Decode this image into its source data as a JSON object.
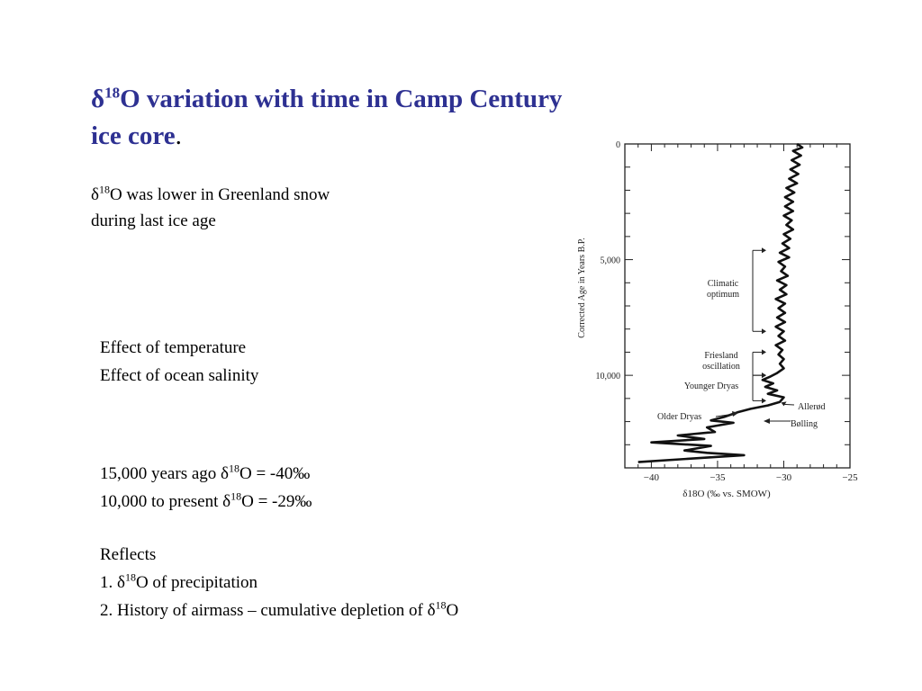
{
  "title": {
    "delta": "δ",
    "sup": "18",
    "line1": "O variation with time in Camp Century",
    "line2": "ice core",
    "period": "."
  },
  "subtitle": {
    "delta": "δ",
    "sup": "18",
    "line1": "O was lower in Greenland snow",
    "line2": "during last ice age"
  },
  "effects": [
    "Effect of temperature",
    "Effect of ocean salinity"
  ],
  "values": {
    "row1": {
      "prefix": "15,000 years ago  ",
      "delta": "δ",
      "sup": "18",
      "suffix": "O = -40‰"
    },
    "row2": {
      "prefix": "10,000 to present  ",
      "delta": "δ",
      "sup": "18",
      "suffix": "O = -29‰"
    }
  },
  "reflects": {
    "heading": "Reflects",
    "item1": {
      "prefix": "1. ",
      "delta": "δ",
      "sup": "18",
      "suffix": "O of precipitation"
    },
    "item2": {
      "prefix": "2. History of airmass – cumulative depletion of ",
      "delta": "δ",
      "sup": "18",
      "suffix": "O"
    }
  },
  "colors": {
    "title": "#2e3192",
    "text": "#000000",
    "background": "#ffffff"
  },
  "chart_data": {
    "type": "line",
    "xlabel": "δ18O (‰ vs. SMOW)",
    "ylabel": "Corrected Age in Years B.P.",
    "xlim": [
      -42,
      -25
    ],
    "ylim": [
      0,
      14000
    ],
    "y_inverted": true,
    "x_ticks": [
      -40,
      -35,
      -30,
      -25
    ],
    "x_tick_labels": [
      "−40",
      "−35",
      "−30",
      "−25"
    ],
    "y_ticks": [
      0,
      5000,
      10000
    ],
    "y_tick_labels": [
      "0",
      "5,000",
      "10,000"
    ],
    "series": [
      {
        "points": [
          [
            -29.0,
            0
          ],
          [
            -28.6,
            150
          ],
          [
            -29.3,
            300
          ],
          [
            -28.7,
            500
          ],
          [
            -29.4,
            700
          ],
          [
            -28.8,
            900
          ],
          [
            -29.5,
            1100
          ],
          [
            -28.9,
            1300
          ],
          [
            -29.6,
            1500
          ],
          [
            -29.0,
            1700
          ],
          [
            -29.8,
            1900
          ],
          [
            -29.2,
            2100
          ],
          [
            -29.9,
            2300
          ],
          [
            -29.3,
            2500
          ],
          [
            -29.9,
            2700
          ],
          [
            -29.3,
            2900
          ],
          [
            -30.0,
            3100
          ],
          [
            -29.4,
            3300
          ],
          [
            -29.8,
            3500
          ],
          [
            -29.3,
            3700
          ],
          [
            -30.0,
            3900
          ],
          [
            -29.5,
            4100
          ],
          [
            -30.1,
            4300
          ],
          [
            -29.6,
            4500
          ],
          [
            -30.3,
            4700
          ],
          [
            -29.6,
            4900
          ],
          [
            -30.4,
            5100
          ],
          [
            -29.9,
            5300
          ],
          [
            -30.2,
            5500
          ],
          [
            -29.7,
            5700
          ],
          [
            -30.5,
            5900
          ],
          [
            -29.8,
            6100
          ],
          [
            -30.3,
            6300
          ],
          [
            -29.8,
            6500
          ],
          [
            -30.6,
            6700
          ],
          [
            -29.9,
            6900
          ],
          [
            -30.4,
            7100
          ],
          [
            -29.9,
            7300
          ],
          [
            -30.5,
            7500
          ],
          [
            -29.9,
            7700
          ],
          [
            -30.6,
            7900
          ],
          [
            -30.0,
            8100
          ],
          [
            -30.4,
            8300
          ],
          [
            -29.9,
            8500
          ],
          [
            -30.6,
            8700
          ],
          [
            -30.1,
            8900
          ],
          [
            -30.4,
            9100
          ],
          [
            -30.0,
            9300
          ],
          [
            -30.3,
            9500
          ],
          [
            -30.0,
            9700
          ],
          [
            -30.5,
            9900
          ],
          [
            -31.0,
            10050
          ],
          [
            -31.6,
            10200
          ],
          [
            -30.8,
            10350
          ],
          [
            -31.4,
            10500
          ],
          [
            -30.5,
            10650
          ],
          [
            -31.2,
            10800
          ],
          [
            -30.0,
            10950
          ],
          [
            -30.3,
            11150
          ],
          [
            -31.2,
            11300
          ],
          [
            -32.5,
            11450
          ],
          [
            -33.5,
            11600
          ],
          [
            -34.5,
            11800
          ],
          [
            -35.5,
            11950
          ],
          [
            -33.8,
            12050
          ],
          [
            -35.8,
            12250
          ],
          [
            -35.2,
            12450
          ],
          [
            -38.0,
            12600
          ],
          [
            -36.0,
            12750
          ],
          [
            -40.0,
            12900
          ],
          [
            -35.5,
            13050
          ],
          [
            -37.5,
            13250
          ],
          [
            -35.8,
            13350
          ],
          [
            -33.0,
            13450
          ],
          [
            -37.0,
            13600
          ],
          [
            -41.0,
            13750
          ]
        ]
      }
    ],
    "annotations": [
      {
        "text": "Climatic optimum",
        "lines": [
          "Climatic",
          "optimum"
        ],
        "y_start": 4600,
        "y_end": 8100
      },
      {
        "text": "Friesland oscillation",
        "lines": [
          "Friesland",
          "oscillation"
        ],
        "y_start": 9000,
        "y_end": 10000
      },
      {
        "text": "Younger Dryas",
        "lines": [
          "Younger Dryas"
        ],
        "y_start": 10000,
        "y_end": 11100
      },
      {
        "text": "Allerød",
        "lines": [
          "Allerød"
        ],
        "target_y": 11100
      },
      {
        "text": "Bølling",
        "lines": [
          "Bølling"
        ],
        "target_y": 11700
      },
      {
        "text": "Older Dryas",
        "lines": [
          "Older Dryas"
        ],
        "target_y": 11950
      }
    ]
  }
}
